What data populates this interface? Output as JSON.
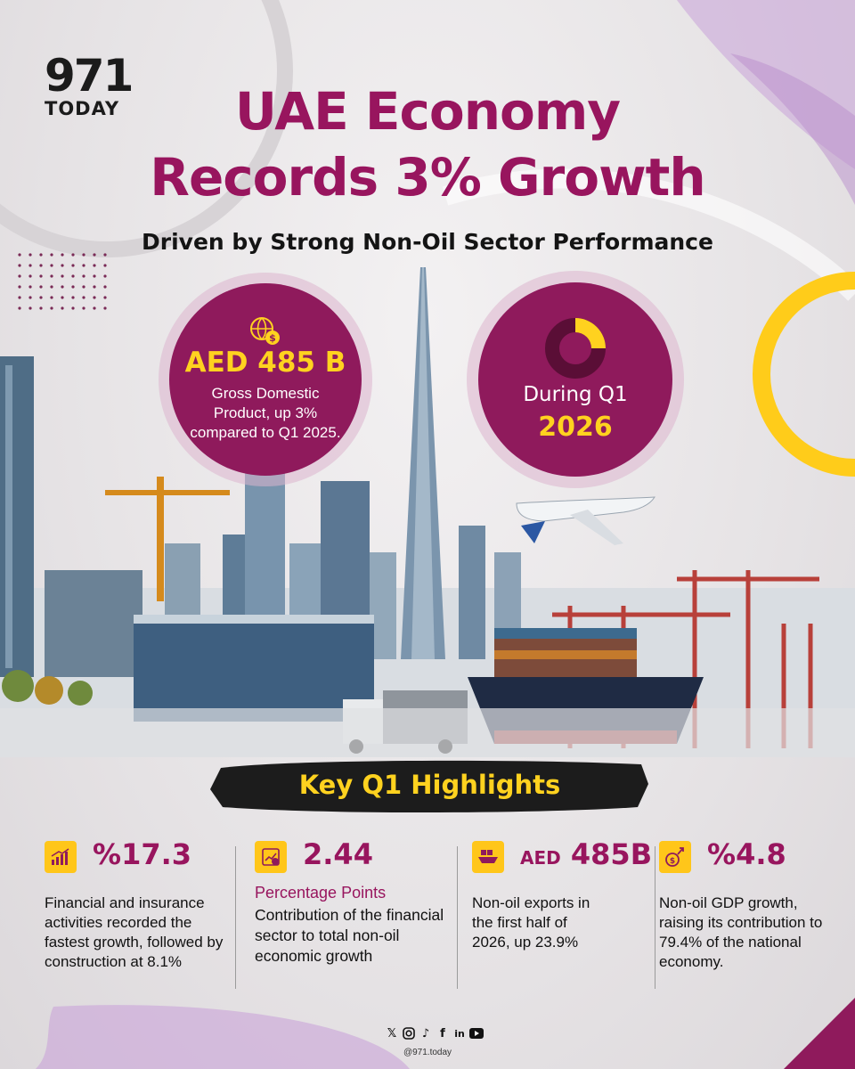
{
  "brand": {
    "number": "971",
    "name": "TODAY"
  },
  "title": {
    "line1": "UAE Economy",
    "line2": "Records 3% Growth"
  },
  "subtitle": "Driven by Strong Non-Oil Sector Performance",
  "gdp_circle": {
    "value": "AED 485 B",
    "description": "Gross Domestic Product, up 3% compared to Q1 2025.",
    "icon": "money-globe-icon"
  },
  "period_circle": {
    "label": "During Q1",
    "year": "2026",
    "icon": "pie-chart-icon",
    "pie_fraction": 0.25
  },
  "highlights_title": "Key Q1 Highlights",
  "highlights": [
    {
      "icon": "bar-chart-growth-icon",
      "value": "%17.3",
      "sub": "",
      "description": "Financial and insurance activities recorded the fastest growth, followed by construction at 8.1%"
    },
    {
      "icon": "finance-chart-icon",
      "value": "2.44",
      "sub": "Percentage Points",
      "description": "Contribution of the financial sector to total non-oil economic growth"
    },
    {
      "icon": "export-ship-icon",
      "value_prefix": "AED",
      "value": "485B",
      "sub": "",
      "description": "Non-oil exports in the first half of 2026, up 23.9%"
    },
    {
      "icon": "gdp-growth-icon",
      "value": "%4.8",
      "sub": "",
      "description": "Non-oil GDP growth, raising its contribution to 79.4% of the national economy."
    }
  ],
  "social": {
    "icons": [
      "x-icon",
      "instagram-icon",
      "tiktok-icon",
      "facebook-icon",
      "linkedin-icon",
      "youtube-icon"
    ],
    "handle": "@971.today"
  },
  "colors": {
    "primary": "#98155e",
    "accent": "#ffc61a",
    "circle": "#8f1a5c"
  }
}
